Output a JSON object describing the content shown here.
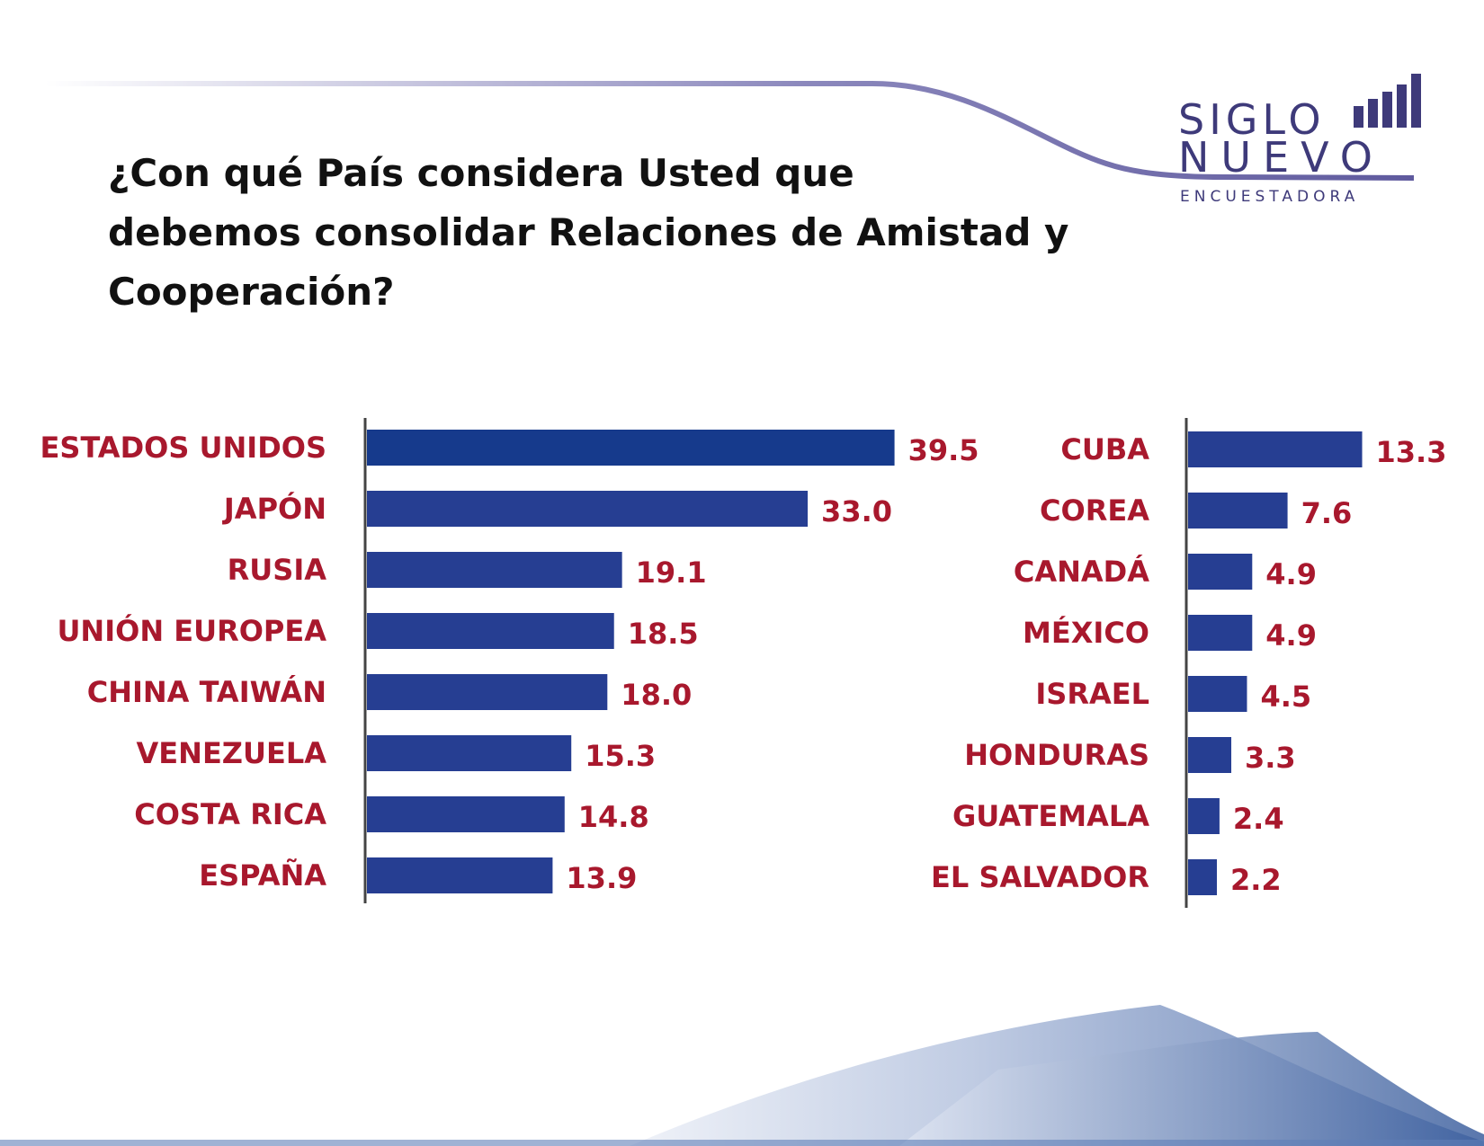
{
  "logo": {
    "line1": "SIGLO",
    "line2": "NUEVO",
    "line3": "ENCUESTADORA"
  },
  "title_lines": [
    "¿Con qué País considera Usted que",
    "debemos consolidar Relaciones de Amistad y Cooperación?"
  ],
  "colors": {
    "bar": "#263e92",
    "bar_first": "#163a8c",
    "label": "#a8182d",
    "axis": "#444444",
    "logo": "#3e3a7a"
  },
  "chart_data": [
    {
      "type": "bar",
      "orientation": "horizontal",
      "categories": [
        "ESTADOS UNIDOS",
        "JAPÓN",
        "RUSIA",
        "UNIÓN EUROPEA",
        "CHINA TAIWÁN",
        "VENEZUELA",
        "COSTA RICA",
        "ESPAÑA"
      ],
      "values": [
        39.5,
        33.0,
        19.1,
        18.5,
        18.0,
        15.3,
        14.8,
        13.9
      ],
      "value_labels": [
        "39.5",
        "33.0",
        "19.1",
        "18.5",
        "18.0",
        "15.3",
        "14.8",
        "13.9"
      ]
    },
    {
      "type": "bar",
      "orientation": "horizontal",
      "categories": [
        "CUBA",
        "COREA",
        "CANADÁ",
        "MÉXICO",
        "ISRAEL",
        "HONDURAS",
        "GUATEMALA",
        "EL SALVADOR"
      ],
      "values": [
        13.3,
        7.6,
        4.9,
        4.9,
        4.5,
        3.3,
        2.4,
        2.2
      ],
      "value_labels": [
        "13.3",
        "7.6",
        "4.9",
        "4.9",
        "4.5",
        "3.3",
        "2.4",
        "2.2"
      ]
    }
  ]
}
